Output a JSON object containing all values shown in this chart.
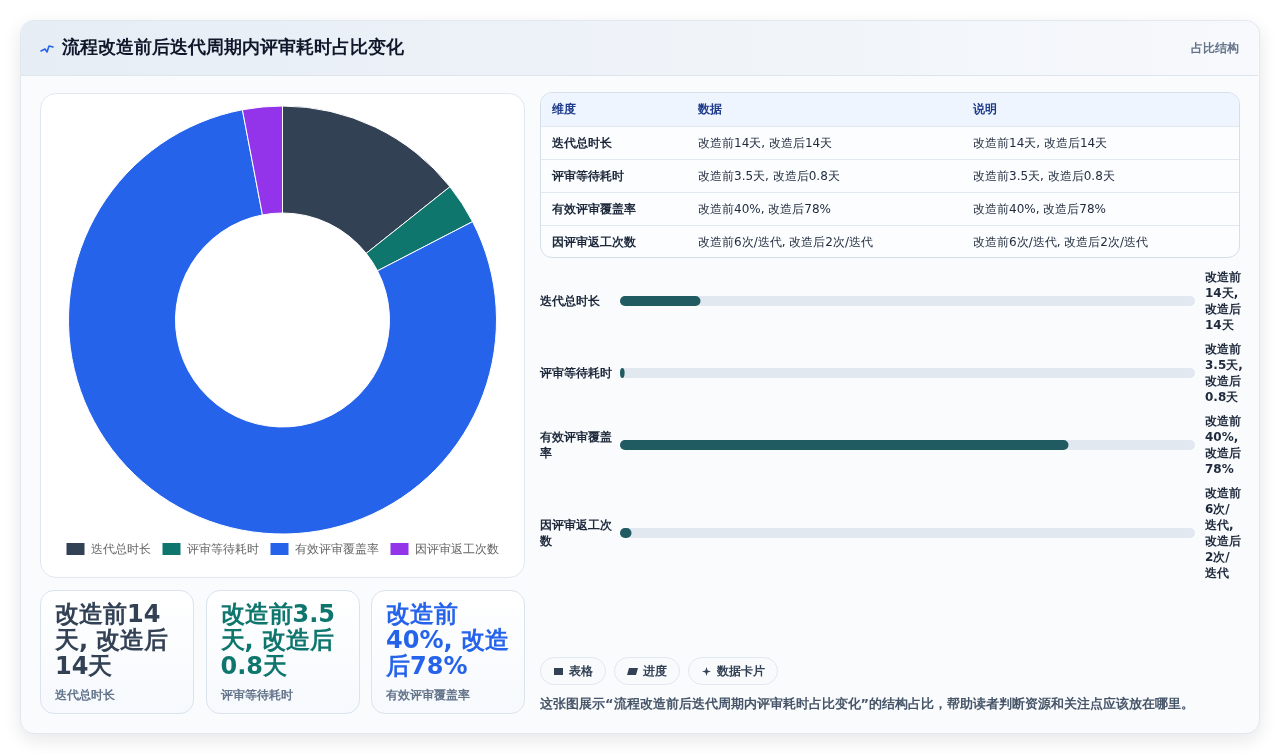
{
  "chart_data": [
    {
      "type": "other",
      "title": "流程改造前后迭代周期内评审耗时占比变化",
      "subtitle": "占比结构"
    },
    {
      "type": "donut",
      "categories": [
        "迭代总时长",
        "评审等待耗时",
        "有效评审覆盖率",
        "因评审返工次数"
      ],
      "values": [
        14.3,
        3.1,
        79.6,
        3.0
      ],
      "colors": [
        "#334155",
        "#0f766e",
        "#2563eb",
        "#9333ea"
      ],
      "legend": "bottom"
    },
    {
      "type": "other",
      "categories": [
        "维度",
        "数据",
        "说明"
      ],
      "y_categories": [
        "迭代总时长",
        "评审等待耗时",
        "有效评审覆盖率",
        "因评审返工次数"
      ],
      "cell_labels": [
        [
          "改造前14天, 改造后14天",
          "改造前14天, 改造后14天"
        ],
        [
          "改造前3.5天, 改造后0.8天",
          "改造前3.5天, 改造后0.8天"
        ],
        [
          "改造前40%, 改造后78%",
          "改造前40%, 改造后78%"
        ],
        [
          "改造前6次/迭代, 改造后2次/迭代",
          "改造前6次/迭代, 改造后2次/迭代"
        ]
      ]
    },
    {
      "type": "bar",
      "orientation": "horizontal",
      "categories": [
        "迭代总时长",
        "评审等待耗时",
        "有效评审覆盖率",
        "因评审返工次数"
      ],
      "values": [
        14,
        0.8,
        78,
        2
      ],
      "xlim": [
        0,
        100
      ],
      "color": "#215b62",
      "value_labels": [
        "改造前14天, 改造后14天",
        "改造前3.5天, 改造后0.8天",
        "改造前40%, 改造后78%",
        "改造前6次/迭代, 改造后2次/迭代"
      ]
    },
    {
      "type": "other",
      "categories": [
        "迭代总时长",
        "评审等待耗时",
        "有效评审覆盖率"
      ],
      "value_labels": [
        "改造前14天, 改造后14天",
        "改造前3.5天, 改造后0.8天",
        "改造前40%, 改造后78%"
      ]
    },
    {
      "type": "other",
      "annotations": [
        "表格",
        "进度",
        "数据卡片",
        "这张图展示“流程改造前后迭代周期内评审耗时占比变化”的结构占比，帮助读者判断资源和关注点应该放在哪里。"
      ]
    }
  ]
}
